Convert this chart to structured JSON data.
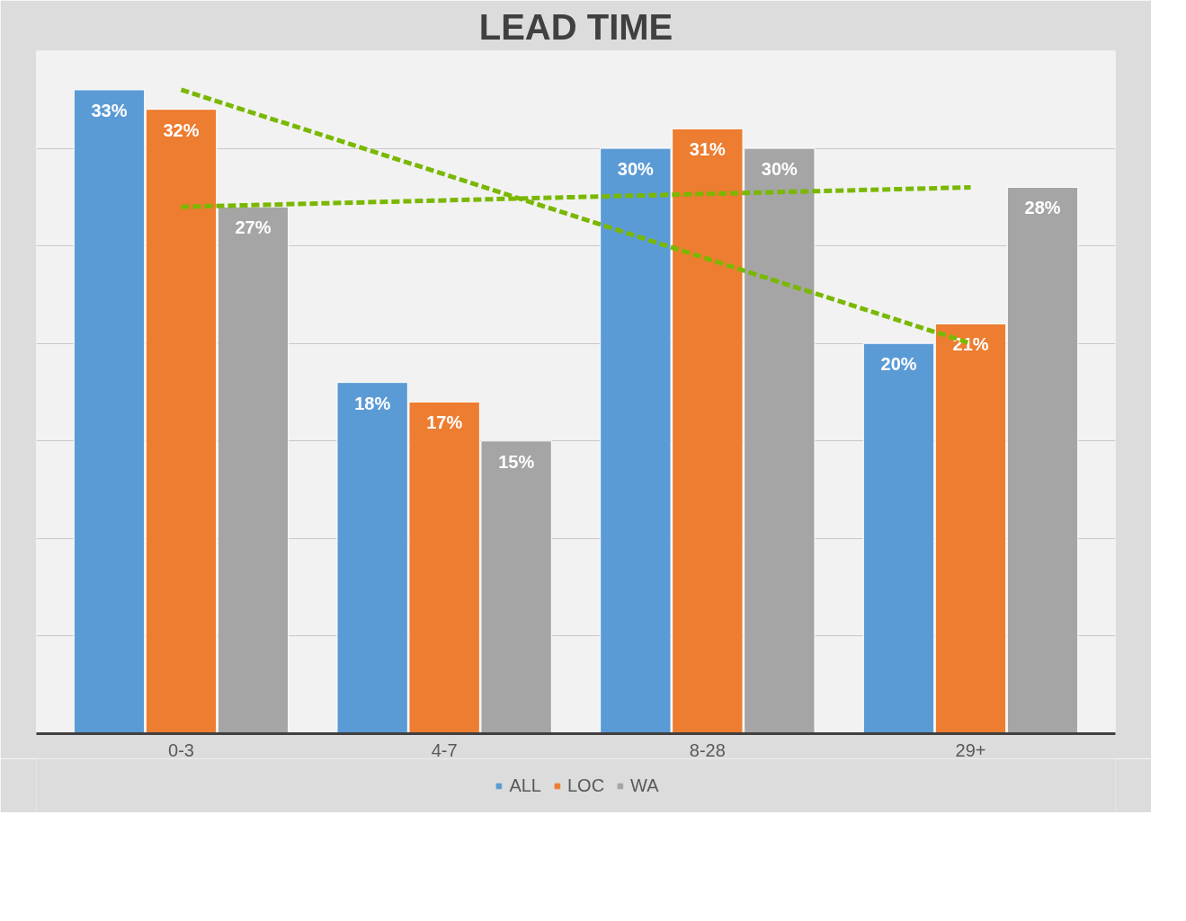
{
  "chart_data": {
    "type": "bar",
    "title": "LEAD TIME",
    "categories": [
      "0-3",
      "4-7",
      "8-28",
      "29+"
    ],
    "series": [
      {
        "name": "ALL",
        "color": "#5b9bd5",
        "values": [
          33,
          18,
          30,
          20
        ],
        "value_labels": [
          "33%",
          "18%",
          "30%",
          "20%"
        ]
      },
      {
        "name": "LOC",
        "color": "#ed7d31",
        "values": [
          32,
          17,
          31,
          21
        ],
        "value_labels": [
          "32%",
          "17%",
          "31%",
          "21%"
        ]
      },
      {
        "name": "WA",
        "color": "#a5a5a5",
        "values": [
          27,
          15,
          30,
          28
        ],
        "value_labels": [
          "27%",
          "15%",
          "30%",
          "28%"
        ]
      },
      {
        "type": "line",
        "color": "#7ab800",
        "x": [
          "0-3",
          "29+"
        ],
        "values": [
          33,
          20
        ],
        "line_style": "dashed",
        "marker": "none"
      },
      {
        "type": "line",
        "color": "#7ab800",
        "x": [
          "0-3",
          "29+"
        ],
        "values": [
          27,
          28
        ],
        "line_style": "dashed",
        "marker": "none"
      }
    ],
    "ylim": [
      0,
      35
    ],
    "yticks": [
      {
        "value": 0,
        "label": null
      },
      {
        "value": 5,
        "label": null
      },
      {
        "value": 10,
        "label": null
      },
      {
        "value": 15,
        "label": null
      },
      {
        "value": 20,
        "label": null
      },
      {
        "value": 25,
        "label": null
      },
      {
        "value": 30,
        "label": null
      },
      {
        "value": 35,
        "label": null
      }
    ],
    "tick_labels": "x",
    "grid": "y",
    "legend": "bottom"
  }
}
